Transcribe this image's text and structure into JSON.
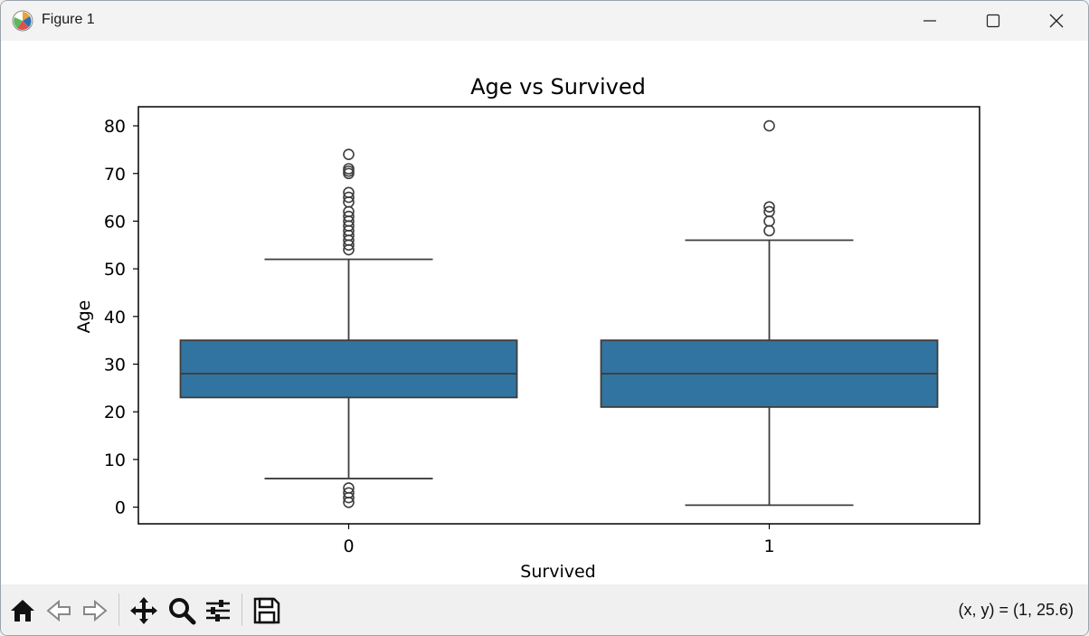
{
  "window": {
    "title": "Figure 1",
    "icon": "matplotlib-logo-icon",
    "controls": [
      "minimize-icon",
      "maximize-icon",
      "close-icon"
    ]
  },
  "toolbar": {
    "buttons": [
      "home-icon",
      "back-arrow-icon",
      "forward-arrow-icon",
      "pan-move-icon",
      "zoom-magnifier-icon",
      "configure-subplots-icon",
      "save-floppy-icon"
    ],
    "coords_text": "(x, y) = (1, 25.6)"
  },
  "chart_data": {
    "type": "box",
    "title": "Age vs Survived",
    "xlabel": "Survived",
    "ylabel": "Age",
    "categories": [
      "0",
      "1"
    ],
    "ylim": [
      -3.5,
      84
    ],
    "yticks": [
      0,
      10,
      20,
      30,
      40,
      50,
      60,
      70,
      80
    ],
    "box_color": "#3274a1",
    "line_color": "#3d3d3d",
    "boxes": [
      {
        "category": "0",
        "q1": 23,
        "median": 28,
        "q3": 35,
        "whisker_low": 6,
        "whisker_high": 52,
        "outliers": [
          74,
          71,
          70.5,
          70,
          66,
          65,
          64,
          62,
          61,
          60,
          59,
          58,
          57,
          56,
          55,
          54,
          4,
          3,
          2,
          1
        ]
      },
      {
        "category": "1",
        "q1": 21,
        "median": 28,
        "q3": 35,
        "whisker_low": 0.42,
        "whisker_high": 56,
        "outliers": [
          80,
          63,
          62,
          60,
          58
        ]
      }
    ]
  }
}
